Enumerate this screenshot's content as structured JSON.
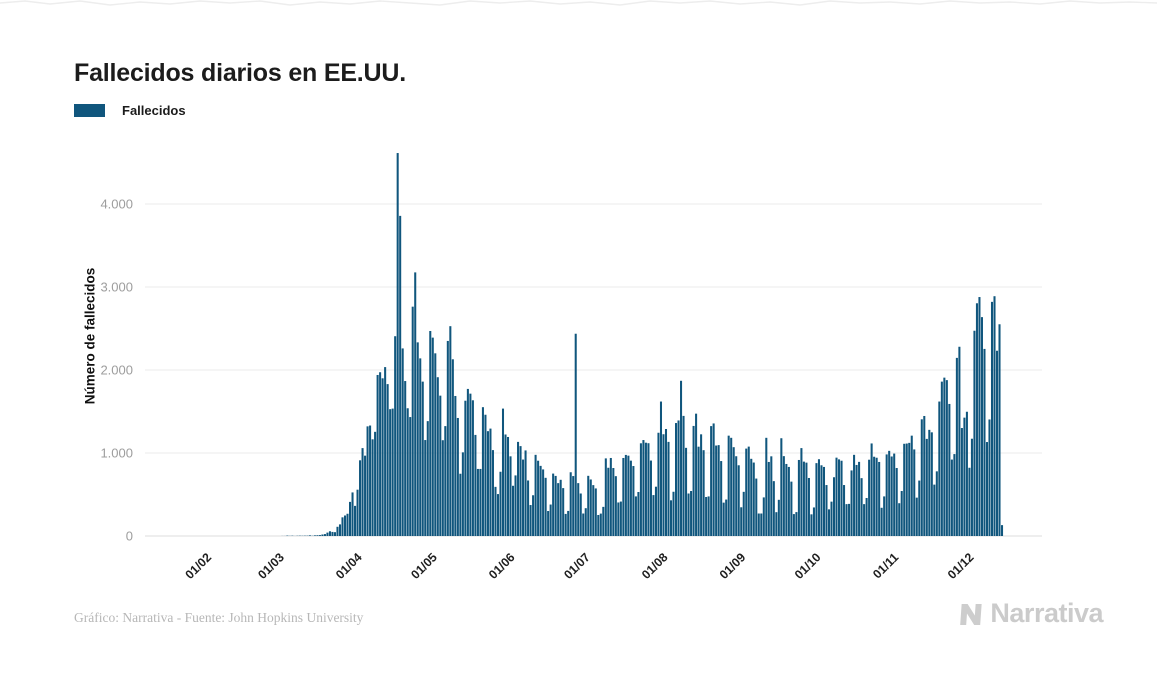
{
  "header": {
    "title": "Fallecidos diarios en EE.UU."
  },
  "legend": {
    "items": [
      {
        "label": "Fallecidos",
        "color": "#10567d"
      }
    ]
  },
  "chart_data": {
    "type": "bar",
    "title": "Fallecidos diarios en EE.UU.",
    "xlabel": "",
    "ylabel": "Número de fallecidos",
    "ylim": [
      0,
      4800
    ],
    "grid": "horizontal",
    "legend_position": "top-left",
    "y_ticks": [
      {
        "value": 0,
        "label": "0"
      },
      {
        "value": 1000,
        "label": "1.000"
      },
      {
        "value": 2000,
        "label": "2.000"
      },
      {
        "value": 3000,
        "label": "3.000"
      },
      {
        "value": 4000,
        "label": "4.000"
      }
    ],
    "x_ticks": [
      {
        "label": "01/02",
        "index": 10
      },
      {
        "label": "01/03",
        "index": 39
      },
      {
        "label": "01/04",
        "index": 70
      },
      {
        "label": "01/05",
        "index": 100
      },
      {
        "label": "01/06",
        "index": 131
      },
      {
        "label": "01/07",
        "index": 161
      },
      {
        "label": "01/08",
        "index": 192
      },
      {
        "label": "01/09",
        "index": 223
      },
      {
        "label": "01/10",
        "index": 253
      },
      {
        "label": "01/11",
        "index": 284
      },
      {
        "label": "01/12",
        "index": 314
      }
    ],
    "series": [
      {
        "name": "Fallecidos",
        "color": "#10567d",
        "values": [
          0,
          0,
          0,
          0,
          0,
          0,
          0,
          0,
          0,
          0,
          0,
          0,
          0,
          0,
          0,
          0,
          0,
          0,
          0,
          0,
          0,
          0,
          0,
          0,
          0,
          0,
          0,
          0,
          0,
          0,
          0,
          0,
          0,
          0,
          0,
          0,
          0,
          0,
          1,
          1,
          5,
          2,
          4,
          1,
          3,
          4,
          3,
          4,
          4,
          8,
          3,
          8,
          9,
          11,
          18,
          23,
          41,
          57,
          49,
          46,
          111,
          140,
          225,
          247,
          268,
          411,
          525,
          363,
          558,
          912,
          1059,
          968,
          1321,
          1331,
          1165,
          1255,
          1940,
          1973,
          1900,
          2035,
          1830,
          1528,
          1535,
          2407,
          4614,
          3857,
          2260,
          1867,
          1539,
          1433,
          2763,
          3176,
          2333,
          2140,
          1860,
          1156,
          1384,
          2470,
          2390,
          2201,
          1913,
          1691,
          1154,
          1324,
          2350,
          2528,
          2129,
          1687,
          1422,
          750,
          1008,
          1630,
          1772,
          1715,
          1635,
          1218,
          808,
          808,
          1552,
          1461,
          1263,
          1294,
          1035,
          592,
          505,
          774,
          1535,
          1223,
          1193,
          960,
          605,
          730,
          1134,
          1083,
          921,
          1031,
          669,
          373,
          491,
          978,
          907,
          845,
          802,
          701,
          301,
          379,
          752,
          724,
          637,
          677,
          577,
          266,
          302,
          768,
          722,
          2437,
          637,
          512,
          271,
          335,
          725,
          681,
          613,
          573,
          253,
          270,
          351,
          935,
          822,
          940,
          819,
          721,
          404,
          415,
          940,
          977,
          968,
          908,
          843,
          477,
          530,
          1117,
          1156,
          1124,
          1118,
          909,
          493,
          594,
          1244,
          1620,
          1226,
          1289,
          1134,
          430,
          533,
          1361,
          1392,
          1870,
          1447,
          1062,
          512,
          542,
          1326,
          1474,
          1076,
          1225,
          1034,
          470,
          477,
          1324,
          1356,
          1090,
          1095,
          903,
          402,
          439,
          1209,
          1183,
          1070,
          961,
          852,
          346,
          532,
          1053,
          1077,
          930,
          885,
          692,
          271,
          271,
          465,
          1183,
          892,
          960,
          661,
          287,
          436,
          1178,
          962,
          868,
          832,
          655,
          264,
          288,
          916,
          1059,
          896,
          884,
          699,
          261,
          344,
          878,
          925,
          852,
          832,
          614,
          321,
          414,
          708,
          944,
          923,
          907,
          614,
          384,
          387,
          790,
          978,
          856,
          893,
          697,
          384,
          458,
          919,
          1115,
          955,
          943,
          892,
          340,
          477,
          983,
          1026,
          958,
          993,
          819,
          395,
          542,
          1111,
          1114,
          1122,
          1209,
          1043,
          462,
          668,
          1406,
          1446,
          1170,
          1279,
          1249,
          619,
          779,
          1620,
          1860,
          1908,
          1878,
          1591,
          921,
          987,
          2146,
          2280,
          1301,
          1426,
          1497,
          822,
          1172,
          2473,
          2804,
          2879,
          2637,
          2254,
          1132,
          1404,
          2821,
          2889,
          2232,
          2551,
          131
        ]
      }
    ]
  },
  "footer": {
    "credit": "Gráfico: Narrativa - Fuente: John Hopkins University",
    "brand": "Narrativa"
  }
}
